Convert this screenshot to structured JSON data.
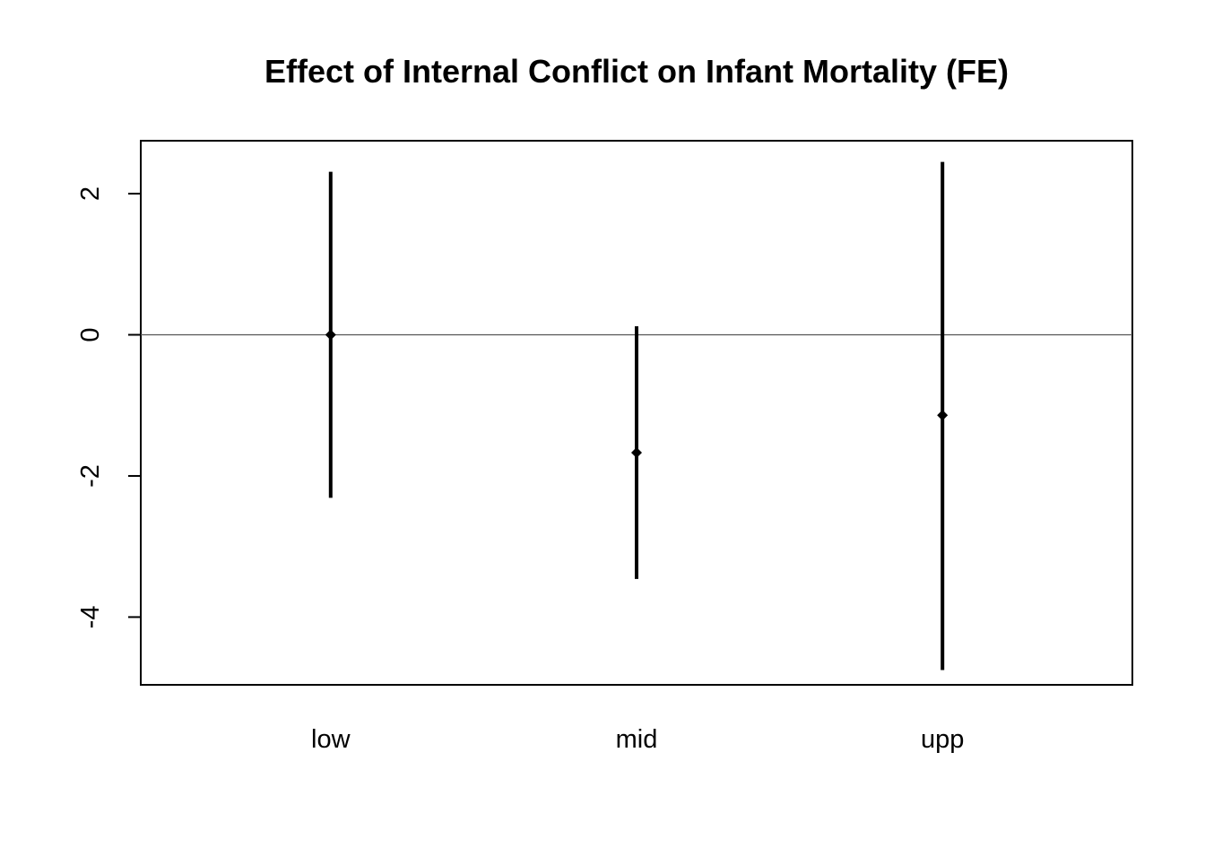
{
  "chart_data": {
    "type": "errorbar",
    "title": "Effect of Internal Conflict on Infant Mortality (FE)",
    "xlabel": "",
    "ylabel": "",
    "categories": [
      "low",
      "mid",
      "upp"
    ],
    "series": [
      {
        "estimates": [
          0.0,
          -1.67,
          -1.14
        ],
        "lower": [
          -2.31,
          -3.46,
          -4.75
        ],
        "upper": [
          2.31,
          0.12,
          2.45
        ]
      }
    ],
    "reference_line": 0,
    "yticks": [
      -4,
      -2,
      0,
      2
    ],
    "ytick_labels": [
      "-4",
      "-2",
      "0",
      "2"
    ],
    "ylim": [
      -4.96,
      2.75
    ],
    "grid": false,
    "legend": "none",
    "colors": {
      "marks": "#000000",
      "reference_line": "#555555",
      "background": "#ffffff"
    }
  }
}
